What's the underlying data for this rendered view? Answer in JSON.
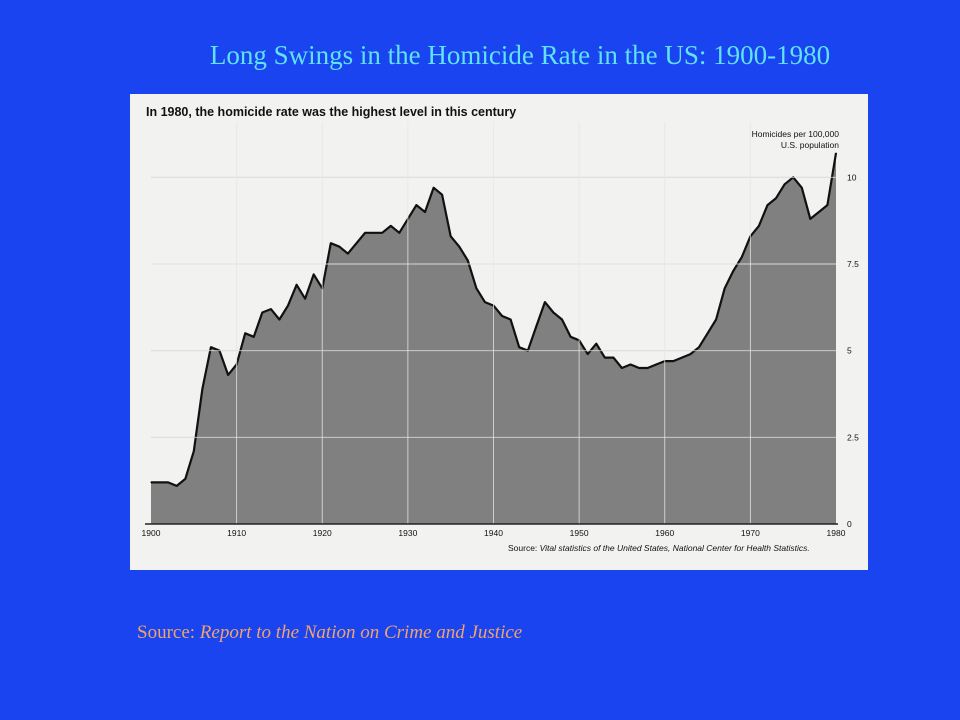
{
  "slide": {
    "title": "Long Swings in the Homicide Rate in the US: 1900-1980",
    "source_prefix": "Source: ",
    "source_title": "Report to the Nation on Crime and Justice"
  },
  "colors": {
    "background": "#1a44f0",
    "title": "#5fe3f7",
    "source_text": "#f0a46a",
    "panel": "#f2f2f0",
    "area_fill": "#808080",
    "line": "#111111",
    "grid": "#e6e6e6"
  },
  "chart_data": {
    "type": "area",
    "title": "In 1980, the homicide rate was the highest level in this century",
    "ylabel": "Homicides per 100,000\nU.S. population",
    "source_note": "Source:  Vital statistics of the United States, National Center for Health Statistics.",
    "xlim": [
      1900,
      1980
    ],
    "ylim": [
      0,
      12
    ],
    "x_ticks": [
      1900,
      1910,
      1920,
      1930,
      1940,
      1950,
      1960,
      1970,
      1980
    ],
    "y_ticks": [
      0,
      2.5,
      5,
      7.5,
      10
    ],
    "y_tick_labels": [
      "0",
      "2.5",
      "5",
      "7.5",
      "10"
    ],
    "grid": true,
    "x": [
      1900,
      1901,
      1902,
      1903,
      1904,
      1905,
      1906,
      1907,
      1908,
      1909,
      1910,
      1911,
      1912,
      1913,
      1914,
      1915,
      1916,
      1917,
      1918,
      1919,
      1920,
      1921,
      1922,
      1923,
      1924,
      1925,
      1926,
      1927,
      1928,
      1929,
      1930,
      1931,
      1932,
      1933,
      1934,
      1935,
      1936,
      1937,
      1938,
      1939,
      1940,
      1941,
      1942,
      1943,
      1944,
      1945,
      1946,
      1947,
      1948,
      1949,
      1950,
      1951,
      1952,
      1953,
      1954,
      1955,
      1956,
      1957,
      1958,
      1959,
      1960,
      1961,
      1962,
      1963,
      1964,
      1965,
      1966,
      1967,
      1968,
      1969,
      1970,
      1971,
      1972,
      1973,
      1974,
      1975,
      1976,
      1977,
      1978,
      1979,
      1980
    ],
    "values": [
      1.2,
      1.2,
      1.2,
      1.1,
      1.3,
      2.1,
      3.9,
      5.1,
      5.0,
      4.3,
      4.6,
      5.5,
      5.4,
      6.1,
      6.2,
      5.9,
      6.3,
      6.9,
      6.5,
      7.2,
      6.8,
      8.1,
      8.0,
      7.8,
      8.1,
      8.4,
      8.4,
      8.4,
      8.6,
      8.4,
      8.8,
      9.2,
      9.0,
      9.7,
      9.5,
      8.3,
      8.0,
      7.6,
      6.8,
      6.4,
      6.3,
      6.0,
      5.9,
      5.1,
      5.0,
      5.7,
      6.4,
      6.1,
      5.9,
      5.4,
      5.3,
      4.9,
      5.2,
      4.8,
      4.8,
      4.5,
      4.6,
      4.5,
      4.5,
      4.6,
      4.7,
      4.7,
      4.8,
      4.9,
      5.1,
      5.5,
      5.9,
      6.8,
      7.3,
      7.7,
      8.3,
      8.6,
      9.2,
      9.4,
      9.8,
      10.0,
      9.7,
      8.8,
      9.0,
      9.2,
      10.7
    ]
  }
}
